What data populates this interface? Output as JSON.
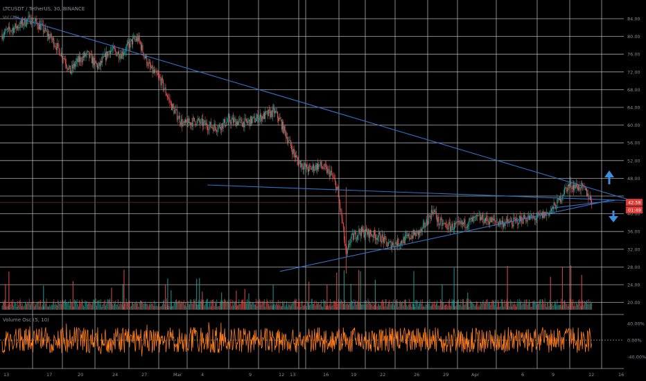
{
  "header": {
    "symbol_line": "LTCUSDT / TetherUS, 30, BINANCE",
    "sub_label": "Vol (20)"
  },
  "oscillator": {
    "title": "Volume Osc (5, 10)"
  },
  "colors": {
    "background": "#000000",
    "grid": "#c8c8c8",
    "candle_up": "#26a69a",
    "candle_down": "#ef5350",
    "trendline": "#2f73c9",
    "arrow": "#3d8fe0",
    "oscillator": "#ff7f1e",
    "price_tag": "#e53935",
    "axis_text": "#8a8f98",
    "horizontal_ref": "#7a2a2a"
  },
  "chart_data": {
    "type": "candlestick",
    "y_axis_labels": [
      "84.00",
      "80.00",
      "76.00",
      "72.00",
      "68.00",
      "64.00",
      "60.00",
      "56.00",
      "52.00",
      "48.00",
      "40.00",
      "36.00",
      "32.00",
      "28.00",
      "24.00",
      "20.00"
    ],
    "x_axis_labels": [
      "13",
      "17",
      "20",
      "24",
      "27",
      "Mar",
      "4",
      "9",
      "12",
      "13",
      "16",
      "19",
      "22",
      "26",
      "29",
      "Apr",
      "6",
      "9",
      "12",
      "16"
    ],
    "oscillator_axis_labels": [
      "40.00%",
      "0.00%",
      "-40.00%"
    ],
    "last_price_tag": "42.58",
    "countdown_tag": "01:49",
    "ylim": [
      17,
      88
    ],
    "price_path": [
      [
        0,
        80.5
      ],
      [
        3,
        82.5
      ],
      [
        5,
        84
      ],
      [
        7,
        82
      ],
      [
        9,
        79
      ],
      [
        11,
        75
      ],
      [
        12,
        72
      ],
      [
        13,
        74
      ],
      [
        15,
        76
      ],
      [
        17,
        73
      ],
      [
        19,
        77
      ],
      [
        21,
        76
      ],
      [
        23,
        79
      ],
      [
        24,
        79.5
      ],
      [
        25,
        76
      ],
      [
        26,
        73
      ],
      [
        28,
        70
      ],
      [
        30,
        64
      ],
      [
        32,
        60
      ],
      [
        34,
        61
      ],
      [
        36,
        60
      ],
      [
        38,
        59.5
      ],
      [
        40,
        61
      ],
      [
        43,
        60.5
      ],
      [
        46,
        62
      ],
      [
        48,
        63
      ],
      [
        49,
        61
      ],
      [
        50,
        58
      ],
      [
        52,
        52
      ],
      [
        54,
        50
      ],
      [
        56,
        51
      ],
      [
        58,
        49
      ],
      [
        59,
        46
      ],
      [
        60,
        38
      ],
      [
        60.7,
        30
      ],
      [
        61.3,
        34
      ],
      [
        63,
        36
      ],
      [
        65,
        35.5
      ],
      [
        67,
        34.5
      ],
      [
        68,
        33
      ],
      [
        70,
        33.5
      ],
      [
        72,
        35
      ],
      [
        74,
        36
      ],
      [
        76,
        41
      ],
      [
        77,
        38
      ],
      [
        79,
        37
      ],
      [
        81,
        37.5
      ],
      [
        84,
        39
      ],
      [
        86,
        38.5
      ],
      [
        88,
        38
      ],
      [
        90,
        38
      ],
      [
        92,
        39
      ],
      [
        94,
        39
      ],
      [
        96,
        40
      ],
      [
        97,
        41
      ],
      [
        98,
        42.5
      ],
      [
        99,
        45
      ],
      [
        100,
        46.5
      ],
      [
        102,
        46
      ],
      [
        103,
        45
      ],
      [
        104,
        42.6
      ]
    ],
    "volume_spikes": [
      0.6,
      1.2,
      7.3,
      12.5,
      19.3,
      21.3,
      21.5,
      28.8,
      29.2,
      29.8,
      34.3,
      34.8,
      35.3,
      38.7,
      41.3,
      42.8,
      43.5,
      47.8,
      54.1,
      57.3,
      59.0,
      60.3,
      61.5,
      62.9,
      63.2,
      65.8,
      72.6,
      77.6,
      79.7,
      82.1,
      89.1,
      96.7,
      98.8,
      100.3,
      102.2
    ],
    "trendlines": [
      {
        "name": "upper-resistance",
        "from": [
          2,
          84.5
        ],
        "to": [
          111,
          43
        ]
      },
      {
        "name": "horizontal-resistance",
        "from": [
          36.2,
          46.5
        ],
        "to": [
          110,
          43
        ]
      },
      {
        "name": "rising-support",
        "from": [
          49,
          27
        ],
        "to": [
          107,
          43
        ]
      },
      {
        "name": "apex-support",
        "from": [
          97,
          41.3
        ],
        "to": [
          108,
          43
        ]
      }
    ]
  }
}
